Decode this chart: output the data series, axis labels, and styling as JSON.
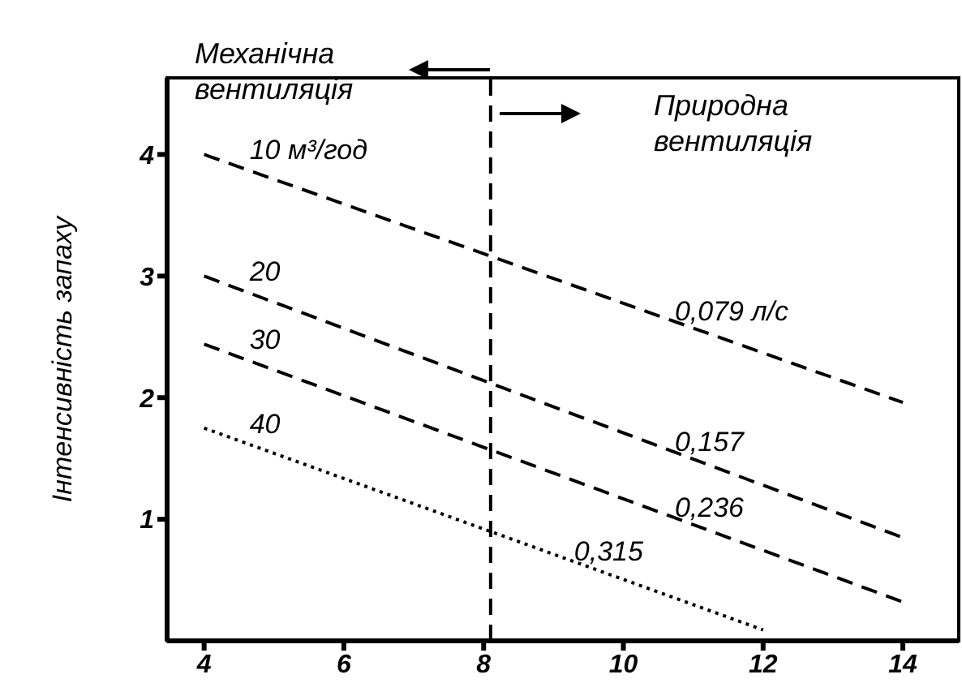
{
  "chart_data": {
    "type": "line",
    "ylabel": "Інтенсивність запаху",
    "xlim": [
      3.47,
      14.8
    ],
    "xticks": [
      4,
      6,
      8,
      10,
      12,
      14
    ],
    "ylim": [
      0,
      4.63
    ],
    "yticks": [
      1,
      2,
      3,
      4
    ],
    "marker": "none",
    "series": [
      {
        "name": "10 м³/год",
        "color": "#000000",
        "x": [
          4,
          14
        ],
        "values": [
          4.0,
          1.96
        ],
        "line_style": "dashed"
      },
      {
        "name": "20",
        "color": "#000000",
        "x": [
          4,
          14
        ],
        "values": [
          3.0,
          0.85
        ],
        "line_style": "dashed"
      },
      {
        "name": "30",
        "color": "#000000",
        "x": [
          4,
          14
        ],
        "values": [
          2.44,
          0.32
        ],
        "line_style": "dashed"
      },
      {
        "name": "40",
        "color": "#000000",
        "x": [
          4,
          12
        ],
        "values": [
          1.75,
          0.09
        ],
        "line_style": "dotted"
      }
    ],
    "ref_lines": [
      {
        "axis": "x",
        "value": 8.1,
        "line_style": "dashed",
        "color": "#000000"
      }
    ],
    "annotations": [
      "Механічна вентиляція",
      "Природна вентиляція",
      "0,079 л/с",
      "0,157",
      "0,236",
      "0,315"
    ]
  }
}
